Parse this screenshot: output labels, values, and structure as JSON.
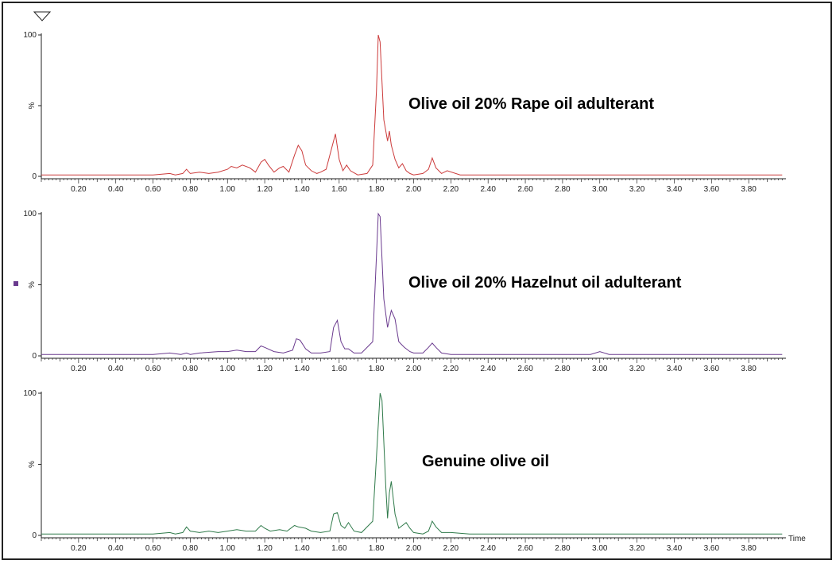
{
  "chart_data": [
    {
      "type": "line",
      "title": "",
      "annotation": "Olive oil 20% Rape oil adulterant",
      "xlabel": "",
      "ylabel": "%",
      "color": "#cc3b3b",
      "xlim": [
        0.0,
        4.0
      ],
      "ylim": [
        0,
        100
      ],
      "y_ticks": [
        "100",
        "%",
        "0"
      ],
      "x_tick_labels": [
        "0.20",
        "0.40",
        "0.60",
        "0.80",
        "1.00",
        "1.20",
        "1.40",
        "1.60",
        "1.80",
        "2.00",
        "2.20",
        "2.40",
        "2.60",
        "2.80",
        "3.00",
        "3.20",
        "3.40",
        "3.60",
        "3.80"
      ],
      "x": [
        0.0,
        0.2,
        0.4,
        0.6,
        0.69,
        0.72,
        0.76,
        0.78,
        0.8,
        0.85,
        0.9,
        0.95,
        1.0,
        1.02,
        1.05,
        1.08,
        1.12,
        1.15,
        1.18,
        1.2,
        1.22,
        1.25,
        1.28,
        1.3,
        1.33,
        1.36,
        1.38,
        1.4,
        1.42,
        1.45,
        1.48,
        1.5,
        1.53,
        1.56,
        1.58,
        1.6,
        1.62,
        1.64,
        1.66,
        1.7,
        1.75,
        1.78,
        1.8,
        1.81,
        1.82,
        1.84,
        1.86,
        1.87,
        1.88,
        1.9,
        1.92,
        1.94,
        1.96,
        1.98,
        2.0,
        2.05,
        2.08,
        2.1,
        2.12,
        2.15,
        2.18,
        2.25,
        2.4,
        2.6,
        2.8,
        3.0,
        3.2,
        3.4,
        3.6,
        3.8,
        3.98
      ],
      "y": [
        1,
        1,
        1,
        1,
        2,
        1,
        2,
        5,
        2,
        3,
        2,
        3,
        5,
        7,
        6,
        8,
        6,
        3,
        10,
        12,
        8,
        3,
        6,
        7,
        3,
        15,
        22,
        18,
        8,
        4,
        2,
        3,
        5,
        20,
        30,
        12,
        4,
        8,
        4,
        1,
        2,
        8,
        60,
        100,
        95,
        40,
        25,
        32,
        22,
        12,
        6,
        9,
        4,
        2,
        1,
        2,
        5,
        13,
        6,
        2,
        4,
        1,
        1,
        1,
        1,
        1,
        1,
        1,
        1,
        1,
        1
      ]
    },
    {
      "type": "line",
      "title": "",
      "annotation": "Olive oil 20% Hazelnut oil adulterant",
      "xlabel": "",
      "ylabel": "%",
      "color": "#6a3a8e",
      "xlim": [
        0.0,
        4.0
      ],
      "ylim": [
        0,
        100
      ],
      "y_ticks": [
        "100",
        "%",
        "0"
      ],
      "x_tick_labels": [
        "0.20",
        "0.40",
        "0.60",
        "0.80",
        "1.00",
        "1.20",
        "1.40",
        "1.60",
        "1.80",
        "2.00",
        "2.20",
        "2.40",
        "2.60",
        "2.80",
        "3.00",
        "3.20",
        "3.40",
        "3.60",
        "3.80"
      ],
      "x": [
        0.0,
        0.2,
        0.4,
        0.6,
        0.69,
        0.75,
        0.78,
        0.8,
        0.85,
        0.95,
        1.0,
        1.05,
        1.1,
        1.15,
        1.18,
        1.2,
        1.25,
        1.3,
        1.35,
        1.37,
        1.39,
        1.42,
        1.45,
        1.5,
        1.55,
        1.57,
        1.59,
        1.61,
        1.63,
        1.65,
        1.68,
        1.72,
        1.78,
        1.8,
        1.81,
        1.82,
        1.84,
        1.86,
        1.88,
        1.9,
        1.92,
        1.95,
        1.98,
        2.0,
        2.05,
        2.08,
        2.1,
        2.12,
        2.15,
        2.2,
        2.4,
        2.6,
        2.8,
        2.95,
        3.0,
        3.05,
        3.2,
        3.4,
        3.6,
        3.8,
        3.98
      ],
      "y": [
        1,
        1,
        1,
        1,
        2,
        1,
        2,
        1,
        2,
        3,
        3,
        4,
        3,
        3,
        7,
        6,
        3,
        2,
        4,
        12,
        11,
        5,
        2,
        2,
        3,
        20,
        25,
        10,
        5,
        5,
        2,
        2,
        10,
        70,
        100,
        98,
        40,
        20,
        32,
        26,
        10,
        6,
        3,
        2,
        2,
        6,
        9,
        6,
        2,
        1,
        1,
        1,
        1,
        1,
        3,
        1,
        1,
        1,
        1,
        1,
        1
      ]
    },
    {
      "type": "line",
      "title": "",
      "annotation": "Genuine olive oil",
      "xlabel": "Time",
      "ylabel": "%",
      "color": "#2f7a4a",
      "xlim": [
        0.0,
        4.0
      ],
      "ylim": [
        0,
        100
      ],
      "y_ticks": [
        "100",
        "%",
        "0"
      ],
      "x_tick_labels": [
        "0.20",
        "0.40",
        "0.60",
        "0.80",
        "1.00",
        "1.20",
        "1.40",
        "1.60",
        "1.80",
        "2.00",
        "2.20",
        "2.40",
        "2.60",
        "2.80",
        "3.00",
        "3.20",
        "3.40",
        "3.60",
        "3.80"
      ],
      "x": [
        0.0,
        0.2,
        0.4,
        0.6,
        0.69,
        0.72,
        0.76,
        0.78,
        0.8,
        0.85,
        0.9,
        0.95,
        1.0,
        1.05,
        1.1,
        1.15,
        1.18,
        1.2,
        1.23,
        1.28,
        1.32,
        1.36,
        1.38,
        1.42,
        1.45,
        1.5,
        1.55,
        1.57,
        1.59,
        1.61,
        1.63,
        1.65,
        1.68,
        1.72,
        1.78,
        1.8,
        1.82,
        1.83,
        1.85,
        1.86,
        1.87,
        1.88,
        1.9,
        1.92,
        1.94,
        1.96,
        1.98,
        2.0,
        2.05,
        2.08,
        2.1,
        2.12,
        2.15,
        2.2,
        2.3,
        2.4,
        2.6,
        2.8,
        3.0,
        3.2,
        3.4,
        3.6,
        3.8,
        3.98
      ],
      "y": [
        1,
        1,
        1,
        1,
        2,
        1,
        2,
        6,
        3,
        2,
        3,
        2,
        3,
        4,
        3,
        3,
        7,
        5,
        3,
        4,
        3,
        7,
        6,
        5,
        3,
        2,
        3,
        15,
        16,
        7,
        5,
        9,
        3,
        2,
        10,
        55,
        100,
        95,
        35,
        12,
        30,
        38,
        15,
        5,
        7,
        9,
        5,
        2,
        1,
        3,
        10,
        6,
        2,
        2,
        1,
        1,
        1,
        1,
        1,
        1,
        1,
        1,
        1,
        1
      ]
    }
  ]
}
